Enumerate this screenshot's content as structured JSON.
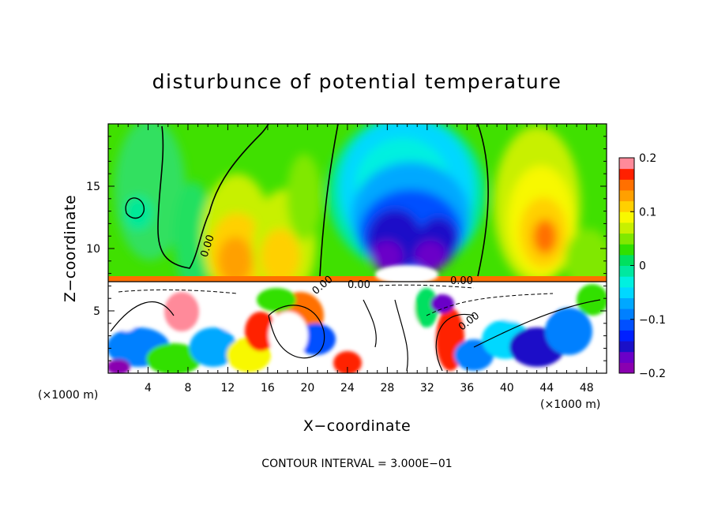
{
  "chart_data": {
    "type": "heatmap",
    "title": "disturbunce of potential temperature",
    "xlabel": "X−coordinate",
    "ylabel": "Z−coordinate",
    "x_unit": "(×1000 m)",
    "y_unit": "(×1000 m)",
    "xlim": [
      0,
      50
    ],
    "ylim": [
      0,
      20
    ],
    "xticks": [
      4,
      8,
      12,
      16,
      20,
      24,
      28,
      32,
      36,
      40,
      44,
      48
    ],
    "yticks": [
      5,
      10,
      15
    ],
    "colorbar": {
      "ticks": [
        0.2,
        0.1,
        0,
        -0.1,
        -0.2
      ],
      "tick_labels": [
        "0.2",
        "0.1",
        "0",
        "−0.1",
        "−0.2"
      ],
      "range": [
        -0.2,
        0.2
      ],
      "n_levels": 20,
      "colors": [
        "#8a00b0",
        "#6a00c8",
        "#1a10c8",
        "#0020ff",
        "#0050ff",
        "#0080ff",
        "#00a8ff",
        "#00d8ff",
        "#00f0e0",
        "#00e8a0",
        "#00e060",
        "#30e000",
        "#80e800",
        "#c8f000",
        "#f8f800",
        "#ffd000",
        "#ffa000",
        "#ff7000",
        "#ff2000",
        "#ff8a9a"
      ]
    },
    "contour_labels": [
      "0.00",
      "0.00",
      "0.00",
      "0.00",
      "0.00"
    ],
    "contour_interval": "CONTOUR INTERVAL = 3.000E−01"
  }
}
